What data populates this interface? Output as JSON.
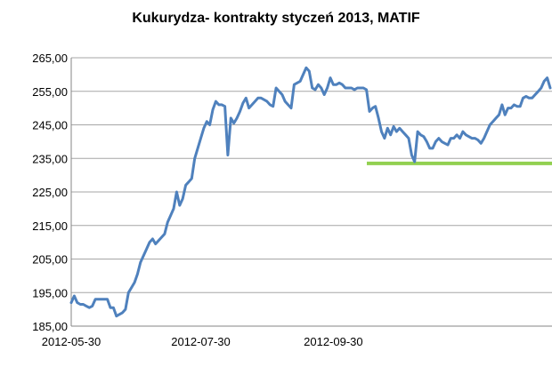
{
  "chart_data": {
    "type": "line",
    "title": "Kukurydza- kontrakty styczeń 2013, MATIF",
    "ylabel": "",
    "xlabel": "",
    "ylim": [
      185,
      265
    ],
    "yticks": [
      "185,00",
      "195,00",
      "205,00",
      "215,00",
      "225,00",
      "235,00",
      "245,00",
      "255,00",
      "265,00"
    ],
    "xticks": [
      "2012-05-30",
      "2012-07-30",
      "2012-09-30"
    ],
    "grid": "horizontal",
    "colors": {
      "series": "#4f81bd",
      "support": "#92d050",
      "grid": "#a6a6a6"
    },
    "series": [
      {
        "values": [
          192,
          194,
          192,
          191.5,
          191.5,
          191,
          190.5,
          191,
          193,
          193,
          193,
          193,
          193,
          190.5,
          190.5,
          188,
          188.5,
          189,
          190,
          195,
          196.5,
          198,
          200.5,
          204,
          206,
          208,
          210,
          211,
          209.5,
          210.5,
          211.5,
          212.5,
          216,
          218,
          220,
          225,
          221,
          223,
          227,
          228,
          229,
          235,
          238,
          241,
          244,
          246,
          245,
          249.5,
          252,
          251,
          251,
          250.5,
          236,
          247,
          245.5,
          247,
          249,
          251.5,
          253,
          250,
          251,
          252,
          253,
          253,
          252.5,
          252,
          251,
          250.5,
          256,
          255,
          254,
          252,
          251,
          250,
          257,
          257.5,
          258,
          260,
          262,
          261,
          256,
          255.5,
          257,
          256,
          254,
          256,
          259,
          257,
          257,
          257.5,
          257,
          256,
          256,
          256,
          255.5,
          256,
          256,
          256,
          255.5,
          249,
          250,
          250.5,
          247,
          243,
          241,
          244,
          242,
          244.5,
          243,
          244,
          243,
          242,
          241,
          236,
          234,
          243,
          242,
          241.5,
          240,
          238,
          238,
          240,
          241,
          240,
          239.5,
          239,
          241,
          241,
          242,
          241,
          243,
          242,
          241.5,
          241,
          241,
          240.5,
          239.5,
          241,
          243,
          245,
          246,
          247,
          248,
          251,
          248,
          250,
          250,
          251,
          250.5,
          250.5,
          253,
          253.5,
          253,
          253,
          254,
          255,
          256,
          258,
          259,
          256
        ]
      }
    ],
    "support_level": 233.5
  }
}
